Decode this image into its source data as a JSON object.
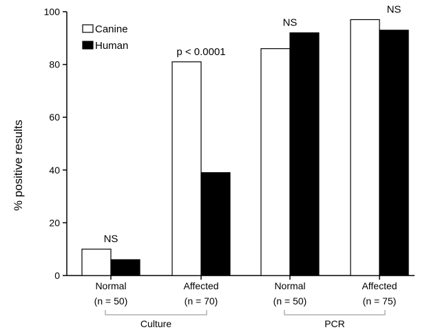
{
  "chart_data": {
    "type": "bar",
    "ylabel": "% positive results",
    "ylim": [
      0,
      100
    ],
    "yticks": [
      0,
      20,
      40,
      60,
      80,
      100
    ],
    "grid": false,
    "legend_position": "top-left",
    "categories": [
      {
        "line1": "Normal",
        "line2": "(n = 50)"
      },
      {
        "line1": "Affected",
        "line2": "(n = 70)"
      },
      {
        "line1": "Normal",
        "line2": "(n = 50)"
      },
      {
        "line1": "Affected",
        "line2": "(n = 75)"
      }
    ],
    "groups": [
      {
        "label": "Culture",
        "categories": [
          0,
          1
        ]
      },
      {
        "label": "PCR",
        "categories": [
          2,
          3
        ]
      }
    ],
    "series": [
      {
        "name": "Canine",
        "color": "#ffffff",
        "values": [
          10,
          81,
          86,
          97
        ]
      },
      {
        "name": "Human",
        "color": "#000000",
        "values": [
          6,
          39,
          92,
          93
        ]
      }
    ],
    "annotations": [
      {
        "text": "NS",
        "category": 0
      },
      {
        "text": "p < 0.0001",
        "category": 1
      },
      {
        "text": "NS",
        "category": 2
      },
      {
        "text": "NS",
        "category": 3
      }
    ]
  }
}
